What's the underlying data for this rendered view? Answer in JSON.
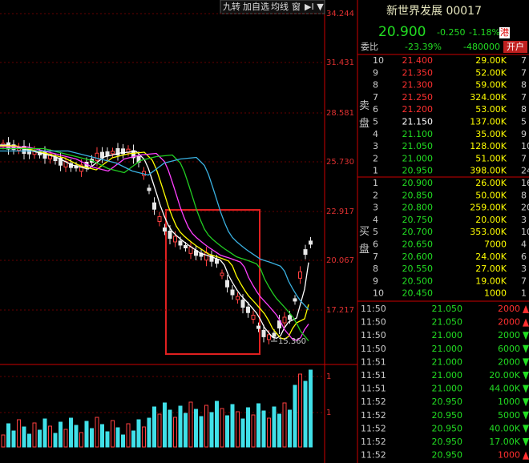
{
  "toolbar": [
    "九转",
    "加自选",
    "均线",
    "窗"
  ],
  "price_axis": [
    "34.244",
    "31.431",
    "28.581",
    "25.730",
    "22.917",
    "20.067",
    "17.217"
  ],
  "low_label": "15.360",
  "volume_axis": [
    "1",
    "1"
  ],
  "quote": {
    "title": "新世界发展 00017",
    "price": "20.900",
    "change": "-0.250",
    "change_pct": "-1.18%",
    "badge": "港"
  },
  "ratio": {
    "label": "委比",
    "pct": "-23.39%",
    "diff": "-480000",
    "button": "开户"
  },
  "sell": {
    "label": "卖盘",
    "rows": [
      [
        "10",
        "21.400",
        "29.00K",
        "7"
      ],
      [
        "9",
        "21.350",
        "52.00K",
        "7"
      ],
      [
        "8",
        "21.300",
        "59.00K",
        "8"
      ],
      [
        "7",
        "21.250",
        "324.00K",
        "7"
      ],
      [
        "6",
        "21.200",
        "53.00K",
        "8"
      ],
      [
        "5",
        "21.150",
        "137.00K",
        "5"
      ],
      [
        "4",
        "21.100",
        "35.00K",
        "9"
      ],
      [
        "3",
        "21.050",
        "128.00K",
        "10"
      ],
      [
        "2",
        "21.000",
        "51.00K",
        "7"
      ],
      [
        "1",
        "20.950",
        "398.00K",
        "24"
      ]
    ]
  },
  "buy": {
    "label": "买盘",
    "rows": [
      [
        "1",
        "20.900",
        "26.00K",
        "16"
      ],
      [
        "2",
        "20.850",
        "50.00K",
        "8"
      ],
      [
        "3",
        "20.800",
        "259.00K",
        "20"
      ],
      [
        "4",
        "20.750",
        "20.00K",
        "3"
      ],
      [
        "5",
        "20.700",
        "353.00K",
        "10"
      ],
      [
        "6",
        "20.650",
        "7000",
        "4"
      ],
      [
        "7",
        "20.600",
        "24.00K",
        "6"
      ],
      [
        "8",
        "20.550",
        "27.00K",
        "3"
      ],
      [
        "9",
        "20.500",
        "19.00K",
        "7"
      ],
      [
        "10",
        "20.450",
        "1000",
        "1"
      ]
    ]
  },
  "ticks": [
    {
      "time": "11:50",
      "price": "21.050",
      "volume": "2000",
      "color": "#ff3030"
    },
    {
      "time": "11:50",
      "price": "21.050",
      "volume": "2000",
      "color": "#ff3030"
    },
    {
      "time": "11:50",
      "price": "21.000",
      "volume": "2000",
      "color": "#22dd22"
    },
    {
      "time": "11:50",
      "price": "21.000",
      "volume": "6000",
      "color": "#22dd22"
    },
    {
      "time": "11:51",
      "price": "21.000",
      "volume": "2000",
      "color": "#22dd22"
    },
    {
      "time": "11:51",
      "price": "21.000",
      "volume": "20.00K",
      "color": "#22dd22"
    },
    {
      "time": "11:51",
      "price": "21.000",
      "volume": "44.00K",
      "color": "#22dd22"
    },
    {
      "time": "11:52",
      "price": "20.950",
      "volume": "1000",
      "color": "#22dd22"
    },
    {
      "time": "11:52",
      "price": "20.950",
      "volume": "5000",
      "color": "#22dd22"
    },
    {
      "time": "11:52",
      "price": "20.950",
      "volume": "40.00K",
      "color": "#22dd22"
    },
    {
      "time": "11:52",
      "price": "20.950",
      "volume": "17.00K",
      "color": "#22dd22"
    },
    {
      "time": "11:52",
      "price": "20.950",
      "volume": "1000",
      "color": "#ff3030"
    }
  ]
}
